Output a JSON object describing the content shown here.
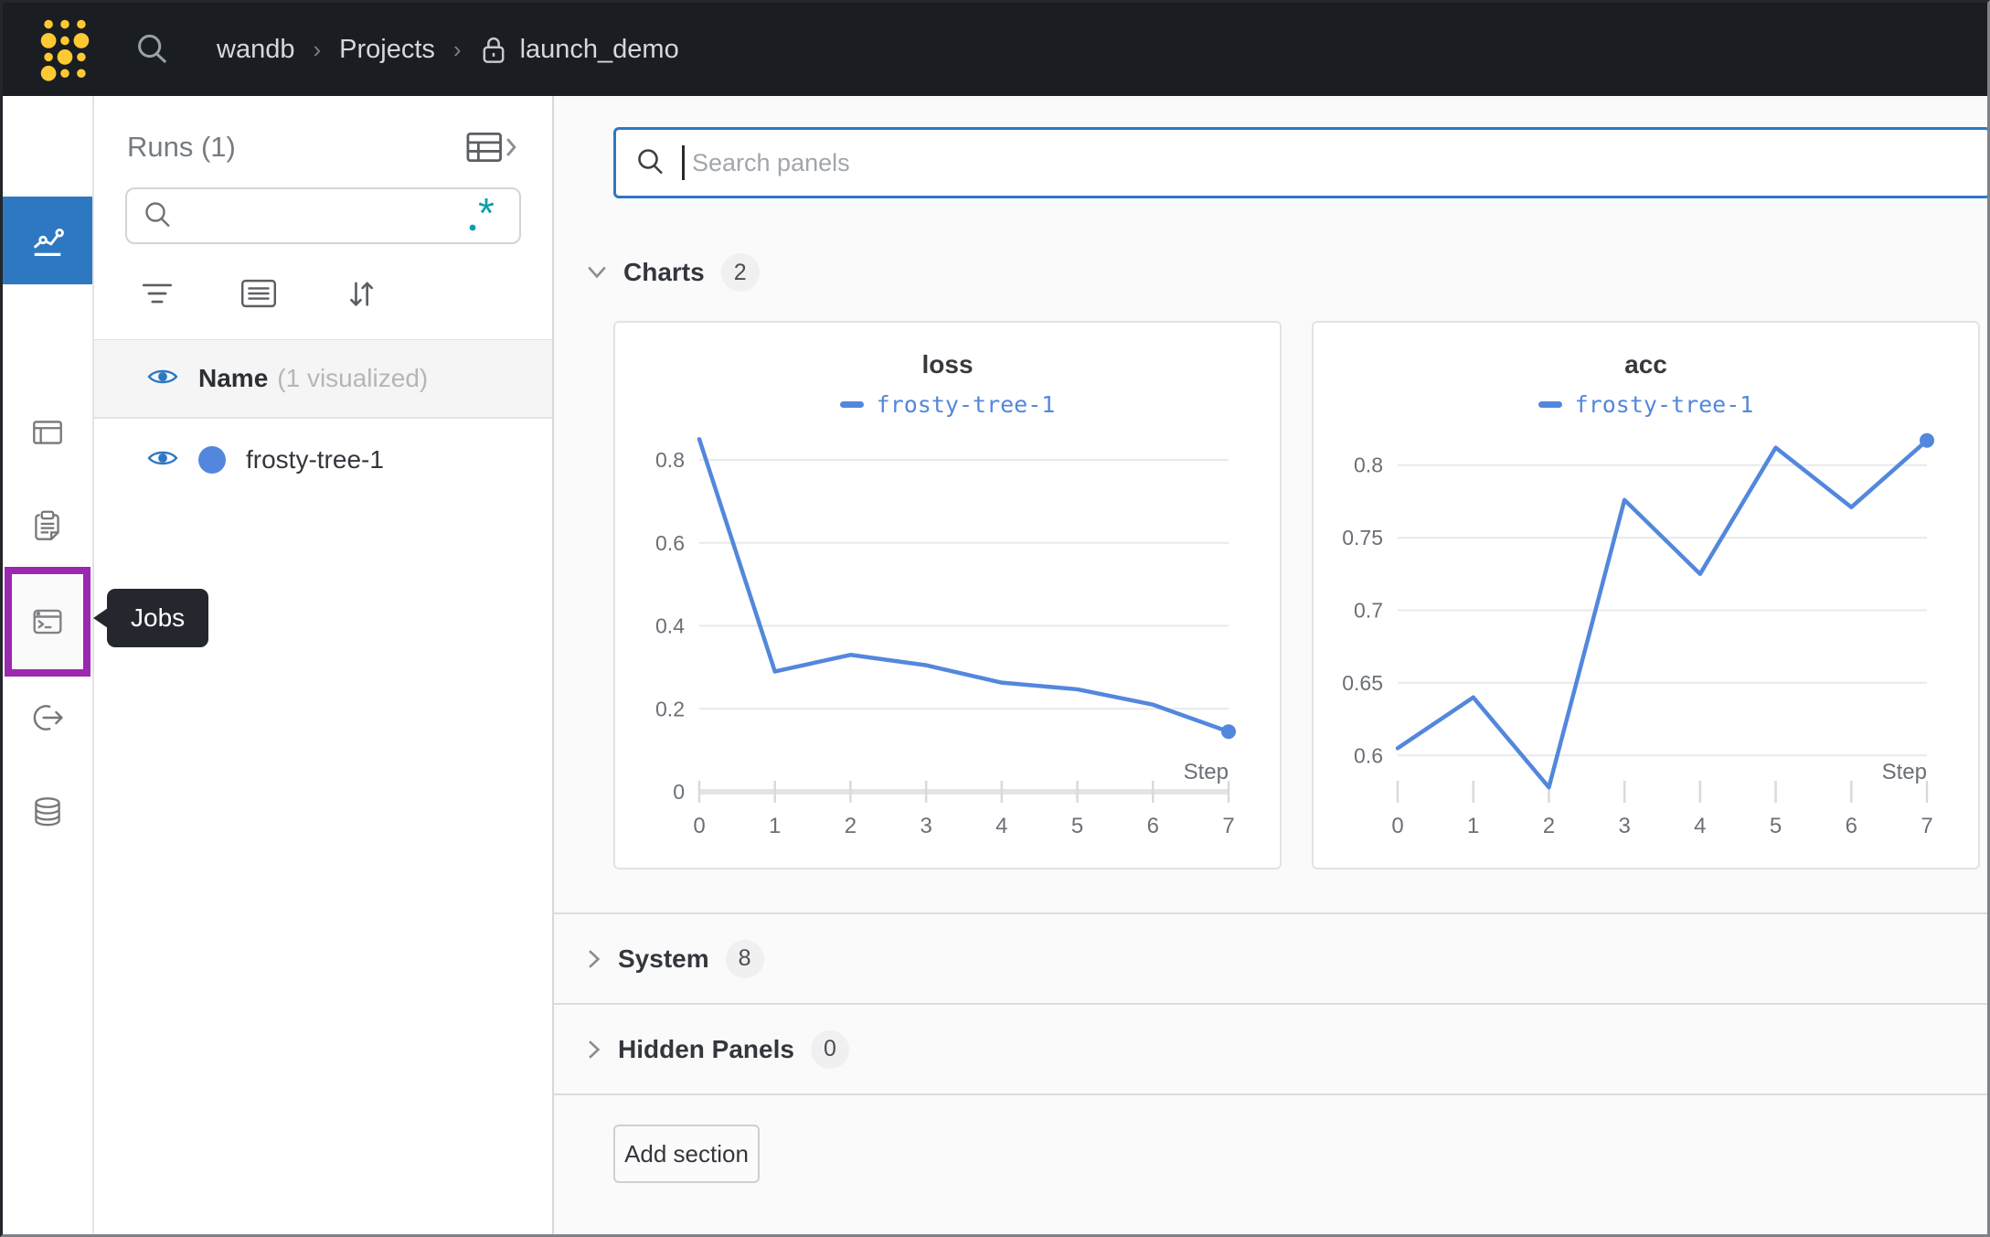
{
  "topbar": {
    "separator": "›",
    "breadcrumb": {
      "entity": "wandb",
      "section": "Projects",
      "project": "launch_demo"
    }
  },
  "sidebar": {
    "tooltip_label": "Jobs"
  },
  "runs_panel": {
    "title": "Runs (1)",
    "search_value": "",
    "regex_icon": ".*",
    "name_header": "Name",
    "visualized_note": "(1 visualized)",
    "runs": [
      {
        "name": "frosty-tree-1",
        "color": "#5387dd"
      }
    ]
  },
  "main": {
    "search": {
      "placeholder": "Search panels",
      "value": ""
    },
    "sections": [
      {
        "label": "Charts",
        "count": "2",
        "expanded": true
      },
      {
        "label": "System",
        "count": "8",
        "expanded": false
      },
      {
        "label": "Hidden Panels",
        "count": "0",
        "expanded": false
      }
    ],
    "add_section_label": "Add section"
  },
  "colors": {
    "accent_blue": "#2e78c2",
    "run_blue": "#5387dd",
    "highlight_purple": "#9c27b0",
    "regex_teal": "#0e9fae",
    "brand_yellow": "#ffc933"
  },
  "chart_data": [
    {
      "type": "line",
      "title": "loss",
      "xlabel": "Step",
      "x": [
        0,
        1,
        2,
        3,
        4,
        5,
        6,
        7
      ],
      "series": [
        {
          "name": "frosty-tree-1",
          "color": "#5387dd",
          "values": [
            0.85,
            0.29,
            0.33,
            0.305,
            0.263,
            0.247,
            0.21,
            0.145
          ]
        }
      ],
      "xticks": [
        0,
        1,
        2,
        3,
        4,
        5,
        6,
        7
      ],
      "yticks": [
        0,
        0.2,
        0.4,
        0.6,
        0.8
      ],
      "xlim": [
        0,
        7
      ],
      "ylim": [
        0,
        0.875
      ],
      "grid": true,
      "baseline": true,
      "end_marker": true,
      "legend_position": "top"
    },
    {
      "type": "line",
      "title": "acc",
      "xlabel": "Step",
      "x": [
        0,
        1,
        2,
        3,
        4,
        5,
        6,
        7
      ],
      "series": [
        {
          "name": "frosty-tree-1",
          "color": "#5387dd",
          "values": [
            0.605,
            0.64,
            0.578,
            0.776,
            0.725,
            0.812,
            0.771,
            0.817
          ]
        }
      ],
      "xticks": [
        0,
        1,
        2,
        3,
        4,
        5,
        6,
        7
      ],
      "yticks": [
        0.6,
        0.65,
        0.7,
        0.75,
        0.8
      ],
      "xlim": [
        0,
        7
      ],
      "ylim": [
        0.575,
        0.825
      ],
      "grid": true,
      "baseline": false,
      "end_marker": true,
      "legend_position": "top"
    }
  ]
}
